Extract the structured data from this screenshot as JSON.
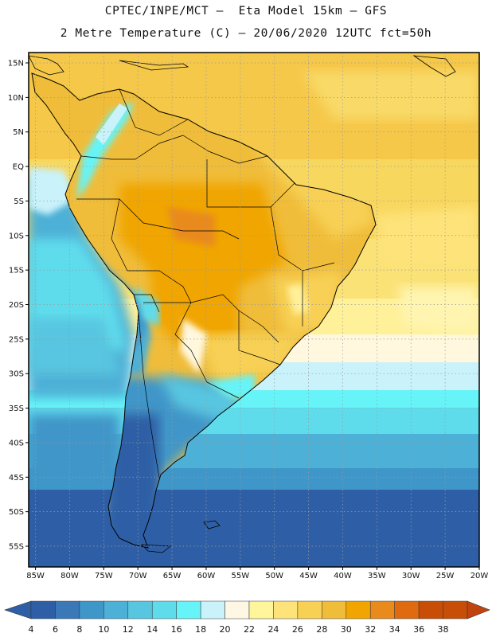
{
  "header": {
    "title_line1": "CPTEC/INPE/MCT –  Eta Model 15km – GFS",
    "title_line2": "2 Metre Temperature (C) – 20/06/2020 12UTC fct=50h"
  },
  "map": {
    "lat_labels": [
      "15N",
      "10N",
      "5N",
      "EQ",
      "5S",
      "10S",
      "15S",
      "20S",
      "25S",
      "30S",
      "35S",
      "40S",
      "45S",
      "50S",
      "55S"
    ],
    "lon_labels": [
      "85W",
      "80W",
      "75W",
      "70W",
      "65W",
      "60W",
      "55W",
      "50W",
      "45W",
      "40W",
      "35W",
      "30W",
      "25W",
      "20W"
    ],
    "lat_values": [
      15,
      10,
      5,
      0,
      -5,
      -10,
      -15,
      -20,
      -25,
      -30,
      -35,
      -40,
      -45,
      -50,
      -55
    ],
    "lon_values": [
      -85,
      -80,
      -75,
      -70,
      -65,
      -60,
      -55,
      -50,
      -45,
      -40,
      -35,
      -30,
      -25,
      -20
    ],
    "lat_range": [
      -58,
      16.5
    ],
    "lon_range": [
      -86,
      -20
    ]
  },
  "colorbar": {
    "labels": [
      "4",
      "6",
      "8",
      "10",
      "12",
      "14",
      "16",
      "18",
      "20",
      "22",
      "24",
      "26",
      "28",
      "30",
      "32",
      "34",
      "36",
      "38"
    ],
    "colors": [
      "#2e5fa6",
      "#3a78b8",
      "#3f96c8",
      "#4db0d6",
      "#58c6e0",
      "#5fdcec",
      "#66f4f8",
      "#c9f2fb",
      "#fdf7e4",
      "#fff59b",
      "#fde37a",
      "#f7d054",
      "#f0bd3a",
      "#f0a500",
      "#e98a1c",
      "#e06a10",
      "#c84e08",
      "#c84e08"
    ],
    "low_color": "#2e5fa6",
    "high_color": "#c1440e"
  }
}
